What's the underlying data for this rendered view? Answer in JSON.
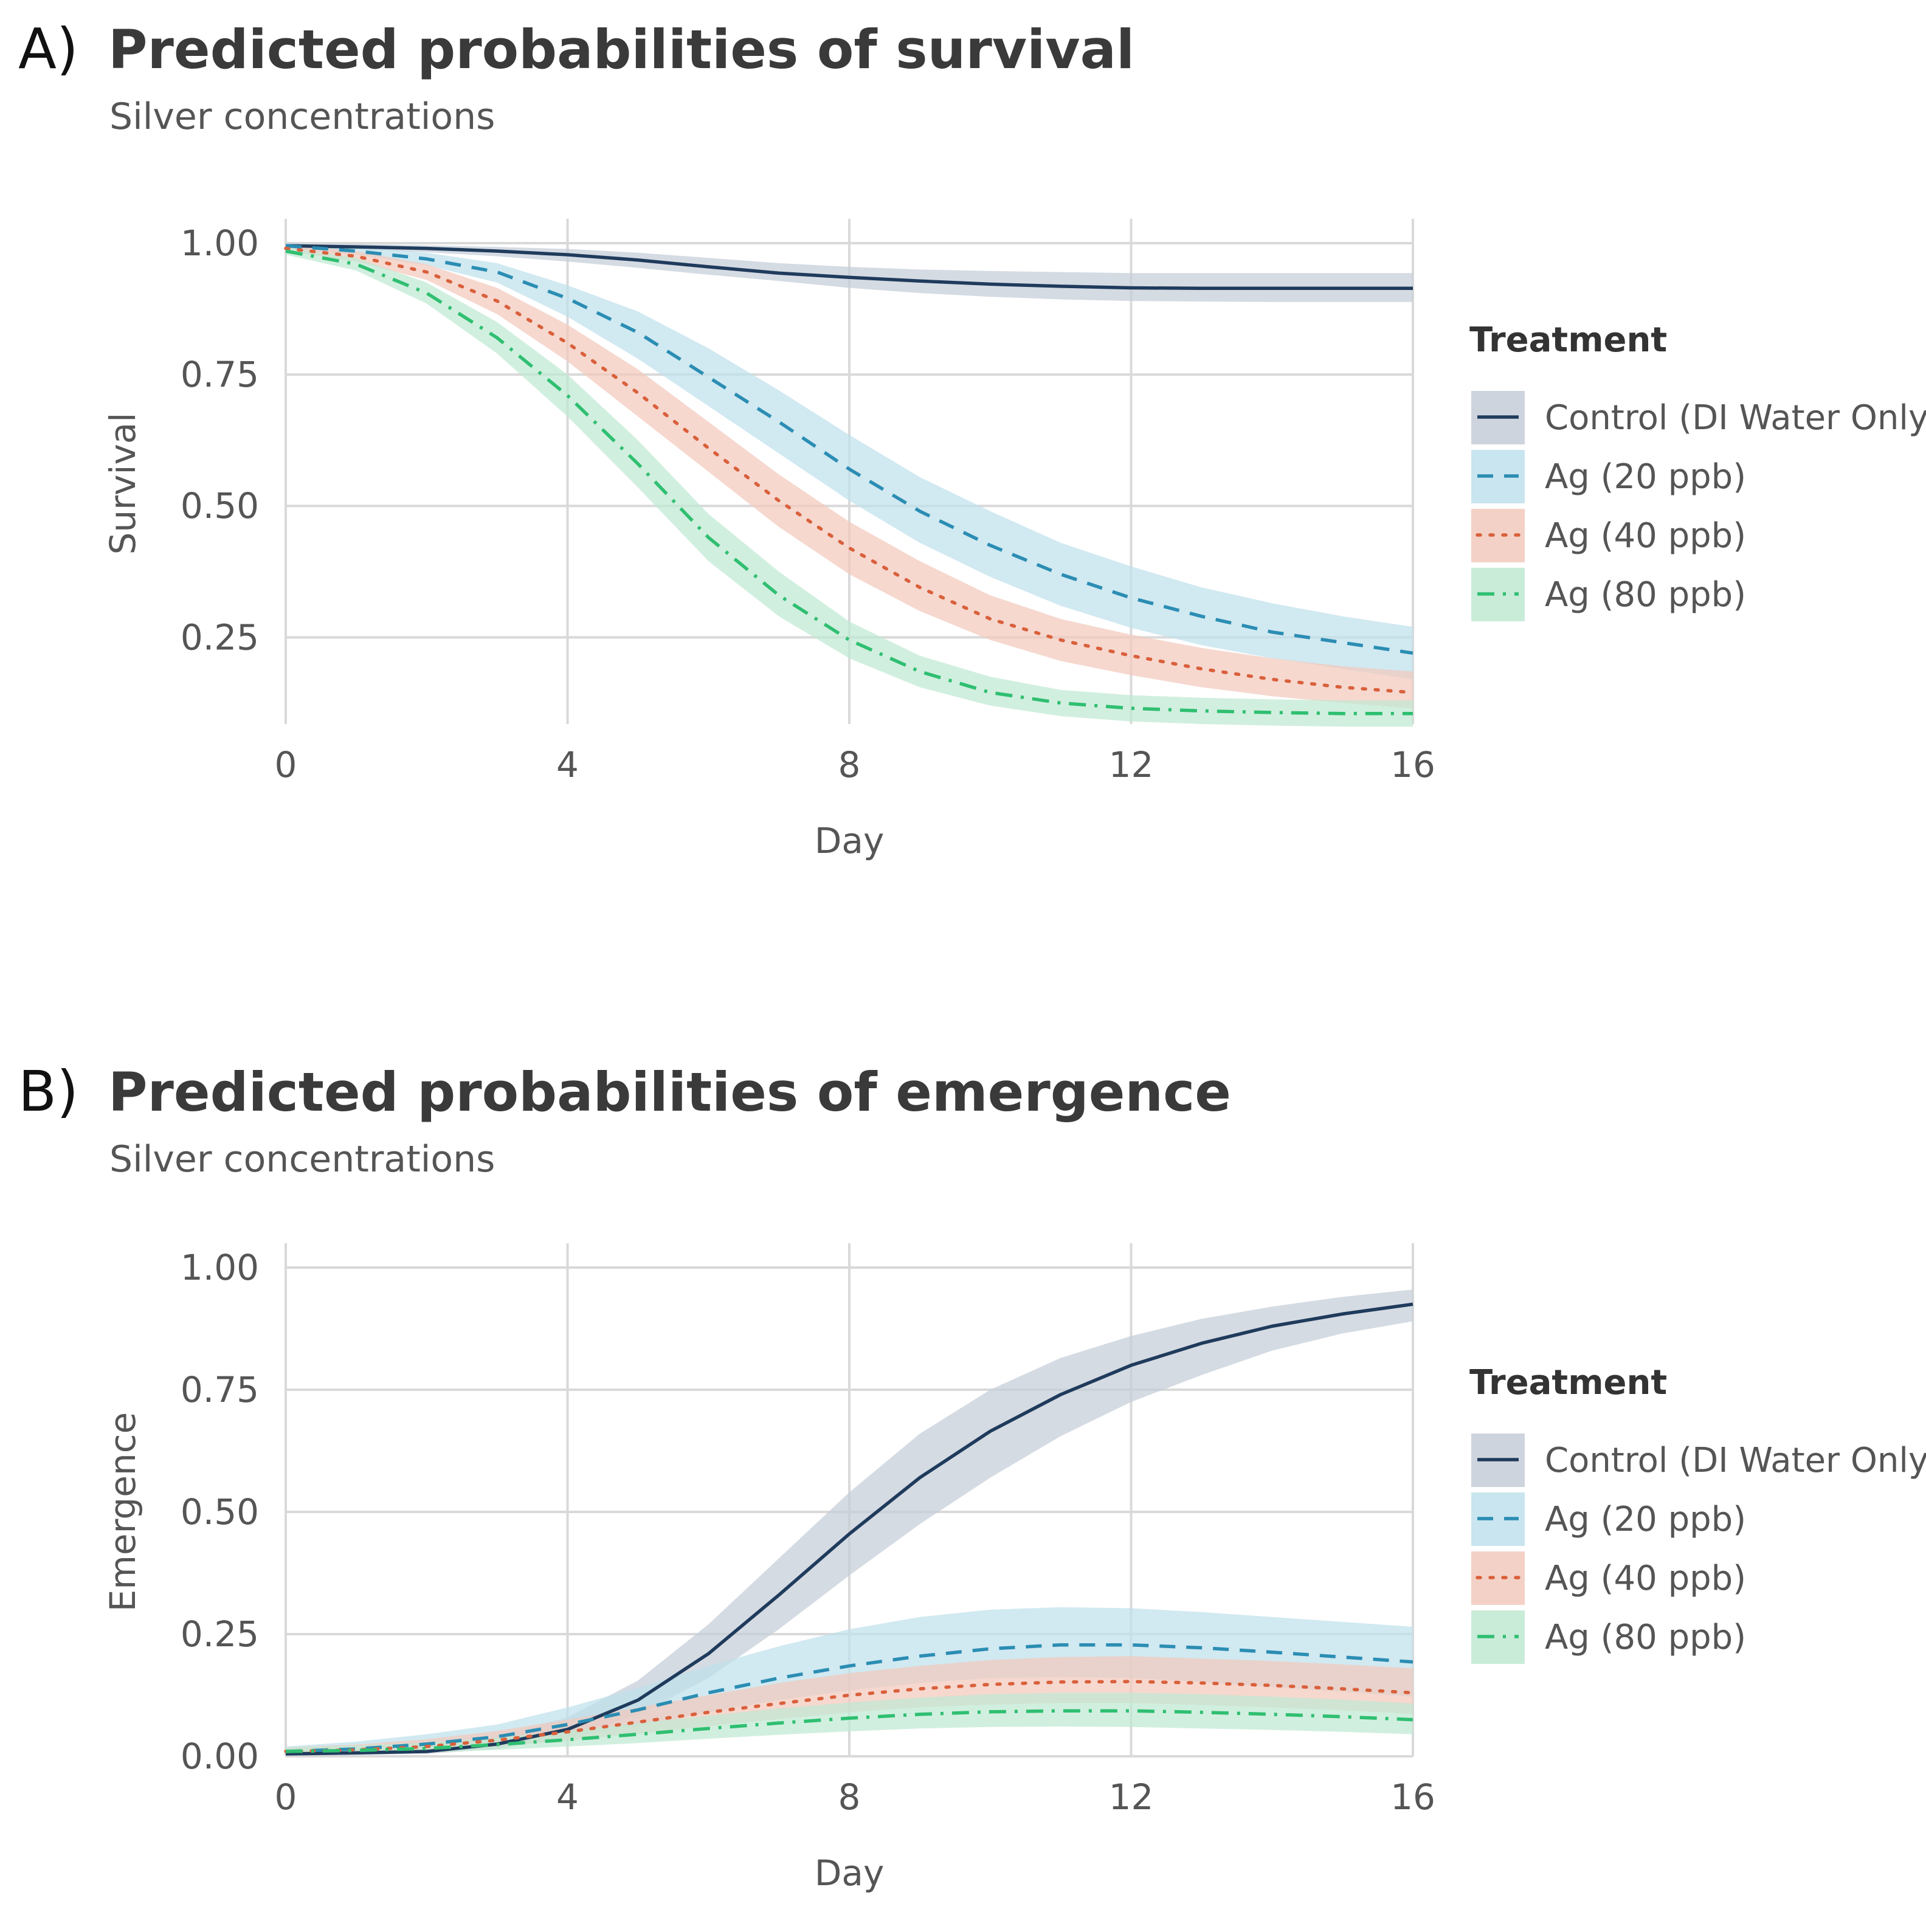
{
  "chart_data": [
    {
      "panel": "A)",
      "type": "line",
      "title": "Predicted probabilities of survival",
      "subtitle": "Silver concentrations",
      "xlabel": "Day",
      "ylabel": "Survival",
      "xlim": [
        0,
        16
      ],
      "ylim": [
        0.0,
        1.0
      ],
      "xticks": [
        0,
        4,
        8,
        12,
        16
      ],
      "yticks": [
        0.25,
        0.5,
        0.75,
        1.0
      ],
      "ytick_labels": [
        "0.25",
        "0.50",
        "0.75",
        "1.00"
      ],
      "legend_title": "Treatment",
      "x": [
        0,
        1,
        2,
        3,
        4,
        5,
        6,
        7,
        8,
        9,
        10,
        11,
        12,
        13,
        14,
        15,
        16
      ],
      "series": [
        {
          "name": "Control (DI Water Only)",
          "color": "#1f3b5c",
          "band": "#c5cdd8",
          "dash": "solid",
          "values": [
            0.995,
            0.993,
            0.99,
            0.985,
            0.978,
            0.968,
            0.955,
            0.943,
            0.935,
            0.928,
            0.922,
            0.918,
            0.915,
            0.914,
            0.914,
            0.914,
            0.914
          ],
          "lower": [
            0.99,
            0.988,
            0.983,
            0.975,
            0.965,
            0.953,
            0.94,
            0.928,
            0.915,
            0.905,
            0.898,
            0.893,
            0.89,
            0.889,
            0.888,
            0.888,
            0.888
          ],
          "upper": [
            1.0,
            0.998,
            0.996,
            0.993,
            0.989,
            0.982,
            0.972,
            0.962,
            0.955,
            0.95,
            0.947,
            0.945,
            0.943,
            0.943,
            0.943,
            0.943,
            0.943
          ]
        },
        {
          "name": "Ag (20 ppb)",
          "color": "#2b8db3",
          "band": "#bfe1ec",
          "dash": "dashed",
          "values": [
            0.995,
            0.985,
            0.97,
            0.945,
            0.895,
            0.83,
            0.745,
            0.66,
            0.57,
            0.49,
            0.425,
            0.37,
            0.325,
            0.29,
            0.26,
            0.24,
            0.22
          ],
          "lower": [
            0.99,
            0.978,
            0.958,
            0.925,
            0.86,
            0.78,
            0.69,
            0.6,
            0.51,
            0.43,
            0.365,
            0.31,
            0.268,
            0.235,
            0.21,
            0.19,
            0.17
          ],
          "upper": [
            1.0,
            0.993,
            0.982,
            0.962,
            0.92,
            0.87,
            0.8,
            0.72,
            0.635,
            0.555,
            0.49,
            0.43,
            0.385,
            0.345,
            0.315,
            0.29,
            0.27
          ]
        },
        {
          "name": "Ag (40 ppb)",
          "color": "#d9603b",
          "band": "#f2c9bc",
          "dash": "dotted",
          "values": [
            0.99,
            0.975,
            0.945,
            0.89,
            0.81,
            0.715,
            0.61,
            0.51,
            0.42,
            0.345,
            0.285,
            0.245,
            0.215,
            0.19,
            0.17,
            0.155,
            0.145
          ],
          "lower": [
            0.985,
            0.965,
            0.93,
            0.865,
            0.775,
            0.67,
            0.565,
            0.46,
            0.37,
            0.3,
            0.245,
            0.205,
            0.178,
            0.155,
            0.138,
            0.125,
            0.115
          ],
          "upper": [
            0.997,
            0.985,
            0.96,
            0.915,
            0.845,
            0.76,
            0.66,
            0.56,
            0.47,
            0.395,
            0.33,
            0.285,
            0.255,
            0.23,
            0.21,
            0.195,
            0.185
          ]
        },
        {
          "name": "Ag (80 ppb)",
          "color": "#2fbf71",
          "band": "#bfe9d2",
          "dash": "dashdot",
          "values": [
            0.985,
            0.96,
            0.905,
            0.82,
            0.71,
            0.58,
            0.44,
            0.33,
            0.245,
            0.185,
            0.145,
            0.125,
            0.115,
            0.11,
            0.107,
            0.105,
            0.105
          ],
          "lower": [
            0.978,
            0.948,
            0.885,
            0.79,
            0.67,
            0.535,
            0.395,
            0.29,
            0.21,
            0.155,
            0.12,
            0.1,
            0.09,
            0.085,
            0.082,
            0.08,
            0.08
          ],
          "upper": [
            0.993,
            0.972,
            0.925,
            0.85,
            0.75,
            0.625,
            0.485,
            0.375,
            0.28,
            0.215,
            0.175,
            0.15,
            0.14,
            0.135,
            0.132,
            0.13,
            0.13
          ]
        }
      ]
    },
    {
      "panel": "B)",
      "type": "line",
      "title": "Predicted probabilities of emergence",
      "subtitle": "Silver concentrations",
      "xlabel": "Day",
      "ylabel": "Emergence",
      "xlim": [
        0,
        16
      ],
      "ylim": [
        0.0,
        1.0
      ],
      "xticks": [
        0,
        4,
        8,
        12,
        16
      ],
      "yticks": [
        0.0,
        0.25,
        0.5,
        0.75,
        1.0
      ],
      "ytick_labels": [
        "0.00",
        "0.25",
        "0.50",
        "0.75",
        "1.00"
      ],
      "legend_title": "Treatment",
      "x": [
        0,
        1,
        2,
        3,
        4,
        5,
        6,
        7,
        8,
        9,
        10,
        11,
        12,
        13,
        14,
        15,
        16
      ],
      "series": [
        {
          "name": "Control (DI Water Only)",
          "color": "#1f3b5c",
          "band": "#c5cdd8",
          "dash": "solid",
          "values": [
            0.005,
            0.007,
            0.01,
            0.025,
            0.055,
            0.115,
            0.21,
            0.33,
            0.455,
            0.57,
            0.665,
            0.74,
            0.8,
            0.845,
            0.88,
            0.905,
            0.925
          ],
          "lower": [
            0.002,
            0.003,
            0.005,
            0.015,
            0.04,
            0.085,
            0.16,
            0.26,
            0.37,
            0.475,
            0.57,
            0.655,
            0.725,
            0.78,
            0.83,
            0.865,
            0.89
          ],
          "upper": [
            0.01,
            0.013,
            0.02,
            0.04,
            0.08,
            0.155,
            0.27,
            0.405,
            0.54,
            0.66,
            0.75,
            0.815,
            0.86,
            0.895,
            0.92,
            0.94,
            0.955
          ]
        },
        {
          "name": "Ag (20 ppb)",
          "color": "#2b8db3",
          "band": "#bfe1ec",
          "dash": "dashed",
          "values": [
            0.01,
            0.015,
            0.025,
            0.04,
            0.065,
            0.095,
            0.13,
            0.16,
            0.185,
            0.205,
            0.22,
            0.228,
            0.228,
            0.222,
            0.213,
            0.203,
            0.193
          ],
          "lower": [
            0.005,
            0.008,
            0.013,
            0.022,
            0.04,
            0.062,
            0.09,
            0.115,
            0.135,
            0.15,
            0.16,
            0.162,
            0.16,
            0.152,
            0.142,
            0.132,
            0.122
          ],
          "upper": [
            0.02,
            0.03,
            0.045,
            0.065,
            0.1,
            0.14,
            0.185,
            0.225,
            0.26,
            0.285,
            0.3,
            0.305,
            0.303,
            0.295,
            0.285,
            0.275,
            0.265
          ]
        },
        {
          "name": "Ag (40 ppb)",
          "color": "#d9603b",
          "band": "#f2c9bc",
          "dash": "dotted",
          "values": [
            0.01,
            0.013,
            0.02,
            0.033,
            0.05,
            0.07,
            0.09,
            0.108,
            0.125,
            0.138,
            0.147,
            0.152,
            0.153,
            0.15,
            0.145,
            0.138,
            0.13
          ],
          "lower": [
            0.005,
            0.007,
            0.011,
            0.02,
            0.032,
            0.046,
            0.062,
            0.076,
            0.09,
            0.1,
            0.106,
            0.109,
            0.109,
            0.105,
            0.1,
            0.094,
            0.087
          ],
          "upper": [
            0.018,
            0.024,
            0.035,
            0.052,
            0.075,
            0.1,
            0.125,
            0.15,
            0.17,
            0.185,
            0.197,
            0.203,
            0.205,
            0.2,
            0.195,
            0.188,
            0.18
          ]
        },
        {
          "name": "Ag (80 ppb)",
          "color": "#2fbf71",
          "band": "#bfe9d2",
          "dash": "dashdot",
          "values": [
            0.01,
            0.012,
            0.016,
            0.024,
            0.034,
            0.045,
            0.057,
            0.068,
            0.078,
            0.086,
            0.091,
            0.093,
            0.093,
            0.09,
            0.086,
            0.081,
            0.075
          ],
          "lower": [
            0.004,
            0.006,
            0.008,
            0.013,
            0.02,
            0.027,
            0.036,
            0.044,
            0.051,
            0.057,
            0.06,
            0.061,
            0.06,
            0.057,
            0.054,
            0.05,
            0.045
          ],
          "upper": [
            0.018,
            0.022,
            0.028,
            0.038,
            0.052,
            0.068,
            0.083,
            0.098,
            0.11,
            0.12,
            0.127,
            0.13,
            0.13,
            0.127,
            0.122,
            0.116,
            0.108
          ]
        }
      ]
    }
  ]
}
